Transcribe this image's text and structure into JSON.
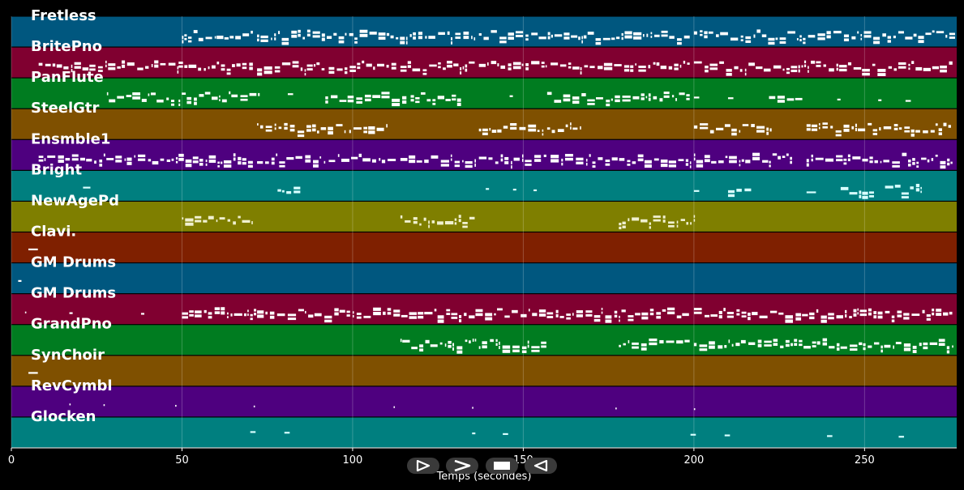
{
  "xaxis": {
    "label": "Temps (secondes)",
    "ticks": [
      0,
      50,
      100,
      150,
      200,
      250
    ],
    "range": [
      0,
      277
    ]
  },
  "tracks": [
    {
      "name": "Fretless",
      "color": "#00577f",
      "note_color": "#ffffff",
      "phrases": [
        [
          50,
          71,
          1
        ],
        [
          72,
          136,
          2
        ],
        [
          137,
          199,
          3
        ],
        [
          200,
          277,
          4
        ]
      ]
    },
    {
      "name": "BritePno",
      "color": "#800030",
      "note_color": "#ffffff",
      "phrases": [
        [
          8,
          49,
          5
        ],
        [
          49,
          71,
          6
        ],
        [
          72,
          92,
          7
        ],
        [
          93,
          113,
          8
        ],
        [
          114,
          136,
          9
        ],
        [
          137,
          157,
          10
        ],
        [
          158,
          199,
          11
        ],
        [
          200,
          276,
          12
        ]
      ]
    },
    {
      "name": "PanFlute",
      "color": "#007c20",
      "note_color": "#ffffff",
      "phrases": [
        [
          28,
          48,
          13
        ],
        [
          49,
          73,
          14
        ],
        [
          81,
          84,
          15
        ],
        [
          92,
          116,
          16
        ],
        [
          117,
          132,
          17
        ],
        [
          146,
          148,
          18
        ],
        [
          157,
          199,
          19
        ],
        [
          200,
          203,
          20
        ],
        [
          210,
          213,
          21
        ],
        [
          222,
          232,
          22
        ],
        [
          242,
          244,
          23
        ],
        [
          254,
          256,
          24
        ],
        [
          262,
          265,
          25
        ]
      ]
    },
    {
      "name": "SteelGtr",
      "color": "#7f5000",
      "note_color": "#ffffff",
      "phrases": [
        [
          72,
          98,
          26
        ],
        [
          99,
          110,
          27
        ],
        [
          137,
          156,
          28
        ],
        [
          157,
          167,
          29
        ],
        [
          200,
          223,
          30
        ],
        [
          233,
          276,
          31
        ]
      ]
    },
    {
      "name": "Ensmble1",
      "color": "#4e007f",
      "note_color": "#ffffff",
      "phrases": [
        [
          8,
          49,
          32
        ],
        [
          49,
          71,
          33
        ],
        [
          72,
          92,
          34
        ],
        [
          93,
          113,
          35
        ],
        [
          114,
          136,
          36
        ],
        [
          137,
          157,
          37
        ],
        [
          158,
          199,
          38
        ],
        [
          200,
          222,
          39
        ],
        [
          222,
          229,
          40
        ],
        [
          233,
          276,
          41
        ]
      ]
    },
    {
      "name": "Bright",
      "color": "#007f7f",
      "note_color": "#d8ffff",
      "phrases": [
        [
          21,
          25,
          42
        ],
        [
          78,
          85,
          43
        ],
        [
          139,
          141,
          44
        ],
        [
          147,
          149,
          45
        ],
        [
          153,
          155,
          46
        ],
        [
          200,
          203,
          47
        ],
        [
          210,
          217,
          48
        ],
        [
          233,
          238,
          49
        ],
        [
          243,
          253,
          50
        ],
        [
          256,
          267,
          51
        ]
      ]
    },
    {
      "name": "NewAgePd",
      "color": "#7f7f00",
      "note_color": "#f0f0d0",
      "phrases": [
        [
          50,
          71,
          52
        ],
        [
          114,
          136,
          53
        ],
        [
          178,
          200,
          54
        ]
      ]
    },
    {
      "name": "Clavi.",
      "color": "#7f2000",
      "note_color": "#ffffff",
      "phrases": [
        [
          5,
          10,
          55
        ]
      ]
    },
    {
      "name": "GM Drums",
      "color": "#00577f",
      "note_color": "#ffffff",
      "phrases": [
        [
          2,
          4,
          56
        ]
      ]
    },
    {
      "name": "GM Drums",
      "color": "#800030",
      "note_color": "#ffffff",
      "phrases": [
        [
          4,
          5,
          57
        ],
        [
          17,
          19,
          58
        ],
        [
          38,
          40,
          59
        ],
        [
          50,
          72,
          60
        ],
        [
          72,
          136,
          61
        ],
        [
          136,
          199,
          62
        ],
        [
          200,
          276,
          63
        ]
      ]
    },
    {
      "name": "GrandPno",
      "color": "#007c20",
      "note_color": "#ffffff",
      "phrases": [
        [
          114,
          136,
          64
        ],
        [
          137,
          157,
          65
        ],
        [
          178,
          199,
          66
        ],
        [
          200,
          276,
          67
        ]
      ]
    },
    {
      "name": "SynChoir",
      "color": "#7f5000",
      "note_color": "#ffffff",
      "phrases": [
        [
          5,
          10,
          68
        ]
      ]
    },
    {
      "name": "RevCymbl",
      "color": "#4e007f",
      "note_color": "#ffffff",
      "phrases": [
        [
          17,
          18,
          69
        ],
        [
          27,
          28,
          70
        ],
        [
          48,
          49,
          71
        ],
        [
          71,
          72,
          72
        ],
        [
          112,
          113,
          73
        ],
        [
          135,
          136,
          74
        ],
        [
          177,
          178,
          75
        ],
        [
          200,
          201,
          76
        ]
      ]
    },
    {
      "name": "Glocken",
      "color": "#007f7f",
      "note_color": "#d8ffff",
      "phrases": [
        [
          70,
          73,
          77
        ],
        [
          80,
          83,
          78
        ],
        [
          135,
          137,
          79
        ],
        [
          144,
          147,
          80
        ],
        [
          199,
          202,
          81
        ],
        [
          209,
          212,
          82
        ],
        [
          239,
          242,
          83
        ],
        [
          260,
          263,
          84
        ]
      ]
    }
  ],
  "controls": {
    "play_icon": "play-icon",
    "forward_icon": "forward-icon",
    "stop_icon": "stop-icon",
    "rewind_icon": "rewind-icon"
  }
}
